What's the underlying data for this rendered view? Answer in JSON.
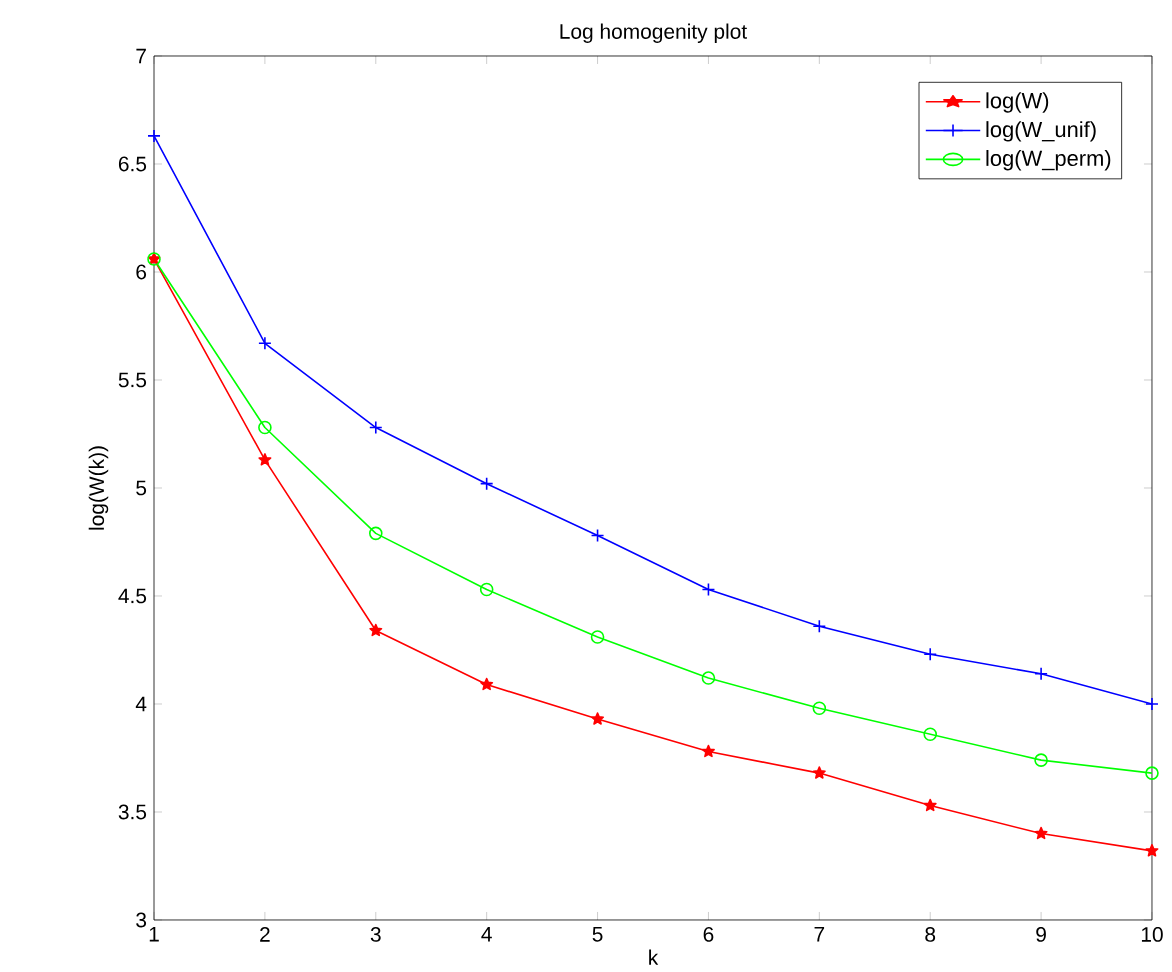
{
  "chart_data": {
    "type": "line",
    "title": "Log homogenity plot",
    "xlabel": "k",
    "ylabel": "log(W(k))",
    "x": [
      1,
      2,
      3,
      4,
      5,
      6,
      7,
      8,
      9,
      10
    ],
    "xlim": [
      1,
      10
    ],
    "ylim": [
      3,
      7
    ],
    "xticks": [
      1,
      2,
      3,
      4,
      5,
      6,
      7,
      8,
      9,
      10
    ],
    "yticks": [
      3,
      3.5,
      4,
      4.5,
      5,
      5.5,
      6,
      6.5,
      7
    ],
    "legend": "top right",
    "grid": false,
    "series": [
      {
        "name": "log(W)",
        "color": "#ff0000",
        "marker": "star",
        "values": [
          6.06,
          5.13,
          4.34,
          4.09,
          3.93,
          3.78,
          3.68,
          3.53,
          3.4,
          3.32
        ]
      },
      {
        "name": "log(W_unif)",
        "color": "#0000ff",
        "marker": "cross",
        "values": [
          6.63,
          5.67,
          5.28,
          5.02,
          4.78,
          4.53,
          4.36,
          4.23,
          4.14,
          4.0
        ]
      },
      {
        "name": "log(W_perm)",
        "color": "#00ff00",
        "marker": "circle",
        "values": [
          6.06,
          5.28,
          4.79,
          4.53,
          4.31,
          4.12,
          3.98,
          3.86,
          3.74,
          3.68
        ]
      }
    ]
  }
}
